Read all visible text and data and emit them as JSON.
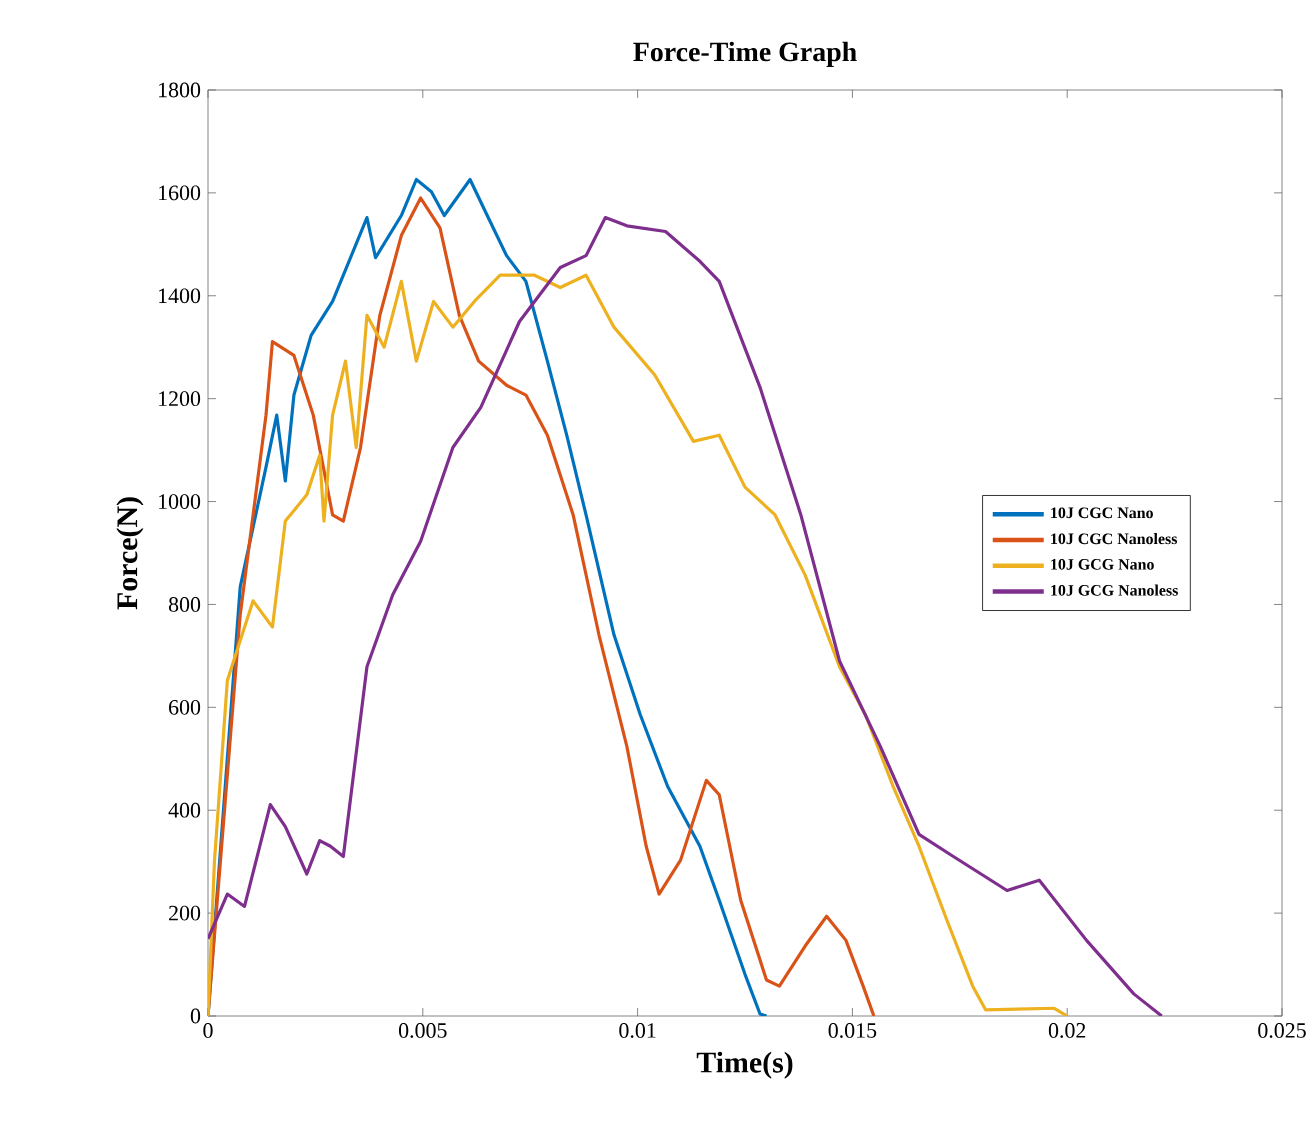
{
  "chart_data": {
    "type": "line",
    "title": "Force-Time Graph",
    "xlabel": "Time(s)",
    "ylabel": "Force(N)",
    "xlim": [
      0,
      0.025
    ],
    "xticks": [
      0,
      0.005,
      0.01,
      0.015,
      0.02,
      0.025
    ],
    "ylim": [
      0,
      1800
    ],
    "yticks": [
      0,
      200,
      400,
      600,
      800,
      1000,
      1200,
      1400,
      1600,
      1800
    ],
    "grid": false,
    "legend": "right",
    "line_style": "solid",
    "marker": "none",
    "series": [
      {
        "name": "10J CGC Nano",
        "color": "#0072bd",
        "x": [
          0,
          0.00075,
          0.00135,
          0.0016,
          0.0018,
          0.002,
          0.0024,
          0.0029,
          0.0037,
          0.0039,
          0.0045,
          0.00485,
          0.0052,
          0.0055,
          0.0061,
          0.0065,
          0.00695,
          0.0074,
          0.0079,
          0.00835,
          0.0088,
          0.00945,
          0.01006,
          0.0107,
          0.01145,
          0.0119,
          0.0125,
          0.01285,
          0.013
        ],
        "values": [
          0,
          834,
          1067,
          1168,
          1040,
          1207,
          1323,
          1389,
          1552,
          1474,
          1556,
          1626,
          1602,
          1556,
          1626,
          1556,
          1478,
          1428,
          1273,
          1129,
          974,
          741,
          586,
          446,
          330,
          225,
          81,
          4,
          0
        ]
      },
      {
        "name": "10J CGC Nanoless",
        "color": "#d95319",
        "x": [
          0,
          0.00075,
          0.00135,
          0.0015,
          0.002,
          0.00245,
          0.0029,
          0.00315,
          0.00355,
          0.004,
          0.0045,
          0.00495,
          0.0054,
          0.00585,
          0.0063,
          0.00695,
          0.0074,
          0.0079,
          0.0085,
          0.0091,
          0.00975,
          0.0102,
          0.0105,
          0.011,
          0.0116,
          0.0119,
          0.0124,
          0.013,
          0.0133,
          0.0139,
          0.0144,
          0.01485,
          0.01525,
          0.0155
        ],
        "values": [
          0,
          780,
          1168,
          1311,
          1284,
          1168,
          974,
          962,
          1105,
          1362,
          1517,
          1590,
          1532,
          1362,
          1273,
          1226,
          1207,
          1129,
          974,
          741,
          524,
          330,
          237,
          303,
          458,
          430,
          225,
          70,
          58,
          136,
          194,
          147,
          58,
          0
        ]
      },
      {
        "name": "10J GCG Nano",
        "color": "#edb120",
        "x": [
          0,
          0.00015,
          0.00045,
          0.00105,
          0.0015,
          0.0018,
          0.0023,
          0.0026,
          0.0027,
          0.0029,
          0.0032,
          0.00345,
          0.0037,
          0.0041,
          0.0045,
          0.00485,
          0.00525,
          0.0057,
          0.0062,
          0.0068,
          0.0076,
          0.0082,
          0.0088,
          0.00945,
          0.0104,
          0.0113,
          0.0119,
          0.0125,
          0.0132,
          0.0139,
          0.0147,
          0.0153,
          0.01595,
          0.01655,
          0.0172,
          0.0178,
          0.0181,
          0.0197,
          0.02
        ],
        "values": [
          0,
          300,
          652,
          807,
          756,
          962,
          1013,
          1090,
          962,
          1168,
          1273,
          1105,
          1362,
          1300,
          1428,
          1273,
          1389,
          1339,
          1389,
          1440,
          1440,
          1416,
          1440,
          1339,
          1246,
          1117,
          1129,
          1028,
          974,
          857,
          679,
          586,
          446,
          330,
          186,
          58,
          12,
          15,
          0
        ]
      },
      {
        "name": "10J GCG Nanoless",
        "color": "#7e2f8e",
        "x": [
          0,
          0.00045,
          0.00085,
          0.00145,
          0.0018,
          0.0023,
          0.0026,
          0.00285,
          0.00315,
          0.0037,
          0.0043,
          0.00495,
          0.0057,
          0.00635,
          0.00725,
          0.0082,
          0.0088,
          0.00925,
          0.00975,
          0.01065,
          0.01145,
          0.0119,
          0.01285,
          0.0138,
          0.0147,
          0.01565,
          0.01655,
          0.01735,
          0.0186,
          0.01935,
          0.02045,
          0.02155,
          0.0222
        ],
        "values": [
          150,
          237,
          213,
          411,
          368,
          276,
          341,
          330,
          310,
          679,
          819,
          923,
          1105,
          1183,
          1350,
          1455,
          1478,
          1552,
          1536,
          1525,
          1467,
          1428,
          1222,
          974,
          690,
          524,
          353,
          310,
          244,
          264,
          147,
          43,
          0
        ]
      }
    ]
  }
}
